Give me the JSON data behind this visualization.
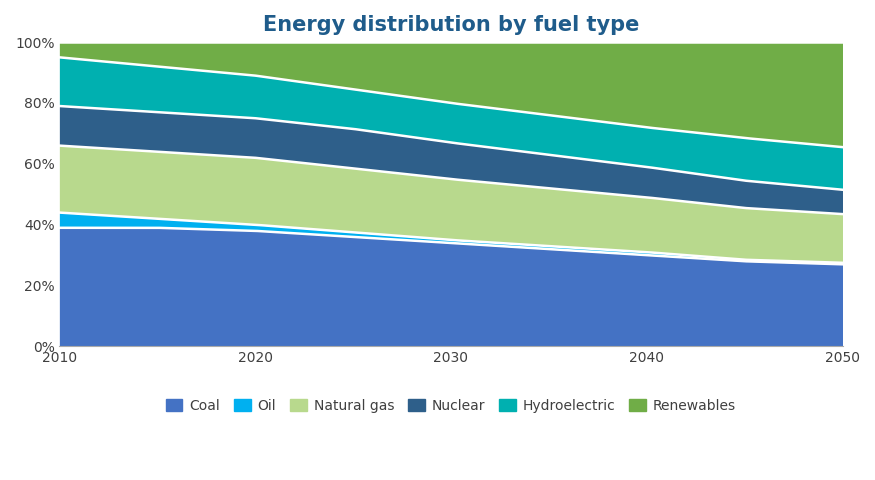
{
  "title": "Energy distribution by fuel type",
  "title_color": "#1F5C8B",
  "years": [
    2010,
    2015,
    2020,
    2025,
    2030,
    2035,
    2040,
    2045,
    2050
  ],
  "series": {
    "Coal": {
      "color": "#4472C4",
      "values": [
        39,
        39,
        38,
        36,
        34,
        32,
        30,
        28,
        27
      ]
    },
    "Oil": {
      "color": "#00B0F0",
      "values": [
        5,
        3,
        2,
        1.5,
        1,
        1,
        1,
        0.5,
        0.5
      ]
    },
    "Natural gas": {
      "color": "#B8D98D",
      "values": [
        22,
        22,
        22,
        21,
        20,
        19,
        18,
        17,
        16
      ]
    },
    "Nuclear": {
      "color": "#2E5F8A",
      "values": [
        13,
        13,
        13,
        13,
        12,
        11,
        10,
        9,
        8
      ]
    },
    "Hydroelectric": {
      "color": "#00B0B0",
      "values": [
        16,
        15,
        14,
        13,
        13,
        13,
        13,
        14,
        14
      ]
    },
    "Renewables": {
      "color": "#70AD47",
      "values": [
        5,
        8,
        11,
        15.5,
        20,
        24,
        28,
        31.5,
        34.5
      ]
    }
  },
  "xlim": [
    2010,
    2050
  ],
  "ylim": [
    0,
    100
  ],
  "xticks": [
    2010,
    2020,
    2030,
    2040,
    2050
  ],
  "yticks": [
    0,
    20,
    40,
    60,
    80,
    100
  ],
  "ytick_labels": [
    "0%",
    "20%",
    "40%",
    "60%",
    "80%",
    "100%"
  ],
  "background_color": "#FFFFFF",
  "plot_bg_color": "#FFFFFF",
  "legend_order": [
    "Coal",
    "Oil",
    "Natural gas",
    "Nuclear",
    "Hydroelectric",
    "Renewables"
  ],
  "tick_label_color": "#404040",
  "font_size_title": 15,
  "font_size_ticks": 10,
  "font_size_legend": 10,
  "line_color": "#FFFFFF",
  "line_width": 1.8
}
